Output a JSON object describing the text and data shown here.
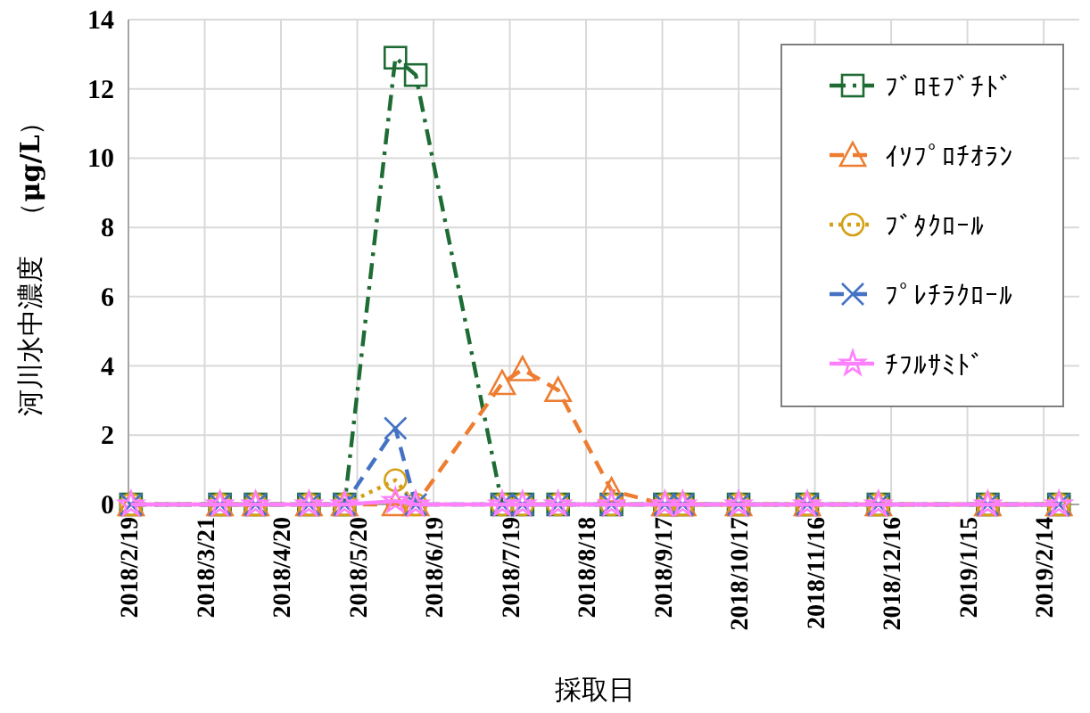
{
  "chart_data": {
    "type": "line",
    "xlabel": "採取日",
    "ylabel": "河川水中濃度　（**μg/L**）",
    "x": [
      "2018-02-20",
      "2018-03-27",
      "2018-04-10",
      "2018-05-01",
      "2018-05-15",
      "2018-06-04",
      "2018-06-12",
      "2018-07-16",
      "2018-07-24",
      "2018-08-07",
      "2018-08-28",
      "2018-09-18",
      "2018-09-25",
      "2018-10-17",
      "2018-11-13",
      "2018-12-11",
      "2019-01-23",
      "2019-02-20"
    ],
    "xlim": [
      "2018-02-19",
      "2019-02-28"
    ],
    "xticks": [
      {
        "value": "2018-02-19",
        "label": "2018/2/19"
      },
      {
        "value": "2018-03-21",
        "label": "2018/3/21"
      },
      {
        "value": "2018-04-20",
        "label": "2018/4/20"
      },
      {
        "value": "2018-05-20",
        "label": "2018/5/20"
      },
      {
        "value": "2018-06-19",
        "label": "2018/6/19"
      },
      {
        "value": "2018-07-19",
        "label": "2018/7/19"
      },
      {
        "value": "2018-08-18",
        "label": "2018/8/18"
      },
      {
        "value": "2018-09-17",
        "label": "2018/9/17"
      },
      {
        "value": "2018-10-17",
        "label": "2018/10/17"
      },
      {
        "value": "2018-11-16",
        "label": "2018/11/16"
      },
      {
        "value": "2018-12-16",
        "label": "2018/12/16"
      },
      {
        "value": "2019-01-15",
        "label": "2019/1/15"
      },
      {
        "value": "2019-02-14",
        "label": "2019/2/14"
      }
    ],
    "ylim": [
      0,
      14
    ],
    "yticks": [
      0,
      2,
      4,
      6,
      8,
      10,
      12,
      14
    ],
    "grid": true,
    "legend": "top right",
    "series": [
      {
        "name": "ﾌﾞﾛﾓﾌﾞﾁﾄﾞ",
        "color": "#1e6b34",
        "marker": "square",
        "line_style": "dashdot",
        "values": [
          0,
          0,
          0,
          0,
          0,
          12.9,
          12.4,
          0,
          0,
          0,
          0,
          0,
          0,
          0,
          0,
          0,
          0,
          0
        ]
      },
      {
        "name": "ｲｿﾌﾟﾛﾁｵﾗﾝ",
        "color": "#ed7d31",
        "marker": "triangle",
        "line_style": "dashed",
        "values": [
          0,
          0,
          0,
          0,
          0,
          0,
          0,
          3.5,
          3.9,
          3.3,
          0.4,
          0,
          0,
          0,
          0,
          0,
          0,
          0
        ]
      },
      {
        "name": "ﾌﾞﾀｸﾛｰﾙ",
        "color": "#d4a017",
        "marker": "circle",
        "line_style": "dotted",
        "values": [
          0,
          0,
          0,
          0,
          0,
          0.7,
          0,
          0,
          0,
          0,
          0,
          0,
          0,
          0,
          0,
          0,
          0,
          0
        ]
      },
      {
        "name": "ﾌﾟﾚﾁﾗｸﾛｰﾙ",
        "color": "#4472c4",
        "marker": "cross",
        "line_style": "dashed",
        "values": [
          0,
          0,
          0,
          0,
          0,
          2.2,
          0,
          0,
          0,
          0,
          0,
          0,
          0,
          0,
          0,
          0,
          0,
          0
        ]
      },
      {
        "name": "ﾁﾌﾙｻﾐﾄﾞ",
        "color": "#ff80ff",
        "marker": "star",
        "line_style": "solid",
        "values": [
          0,
          0,
          0,
          0,
          0,
          0.1,
          0,
          0,
          0,
          0,
          0,
          0,
          0,
          0,
          0,
          0,
          0,
          0
        ]
      }
    ]
  }
}
